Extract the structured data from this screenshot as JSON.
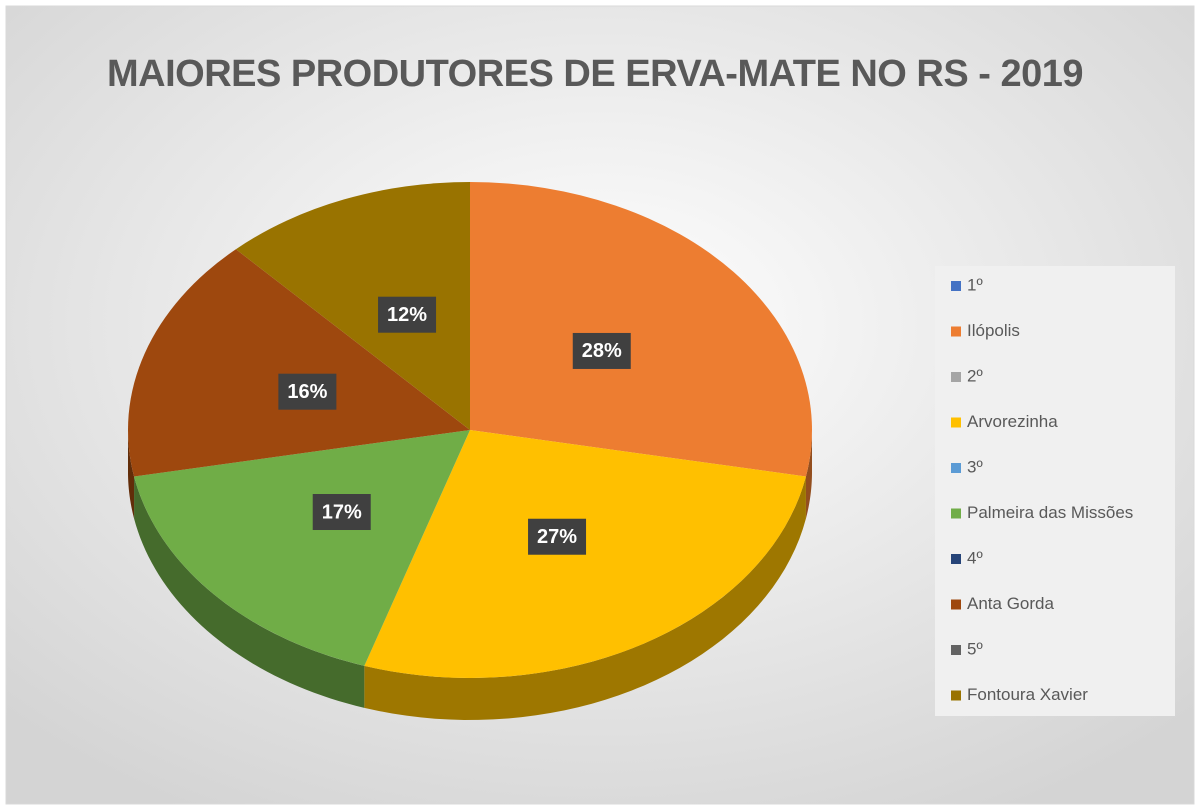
{
  "chart_data": {
    "type": "pie3d",
    "title": "MAIORES PRODUTORES DE ERVA-MATE NO RS - 2019",
    "categories": [
      "1º",
      "Ilópolis",
      "2º",
      "Arvorezinha",
      "3º",
      "Palmeira das Missões",
      "4º",
      "Anta Gorda",
      "5º",
      "Fontoura Xavier"
    ],
    "values": [
      0,
      28,
      0,
      27,
      0,
      17,
      0,
      16,
      0,
      12
    ],
    "value_labels": [
      null,
      "28%",
      null,
      "27%",
      null,
      "17%",
      null,
      "16%",
      null,
      "12%"
    ],
    "colors": [
      "#4472c4",
      "#ed7d31",
      "#a5a5a5",
      "#ffc000",
      "#5b9bd5",
      "#70ad47",
      "#264478",
      "#9e480e",
      "#636363",
      "#997300"
    ],
    "legend": "right"
  }
}
